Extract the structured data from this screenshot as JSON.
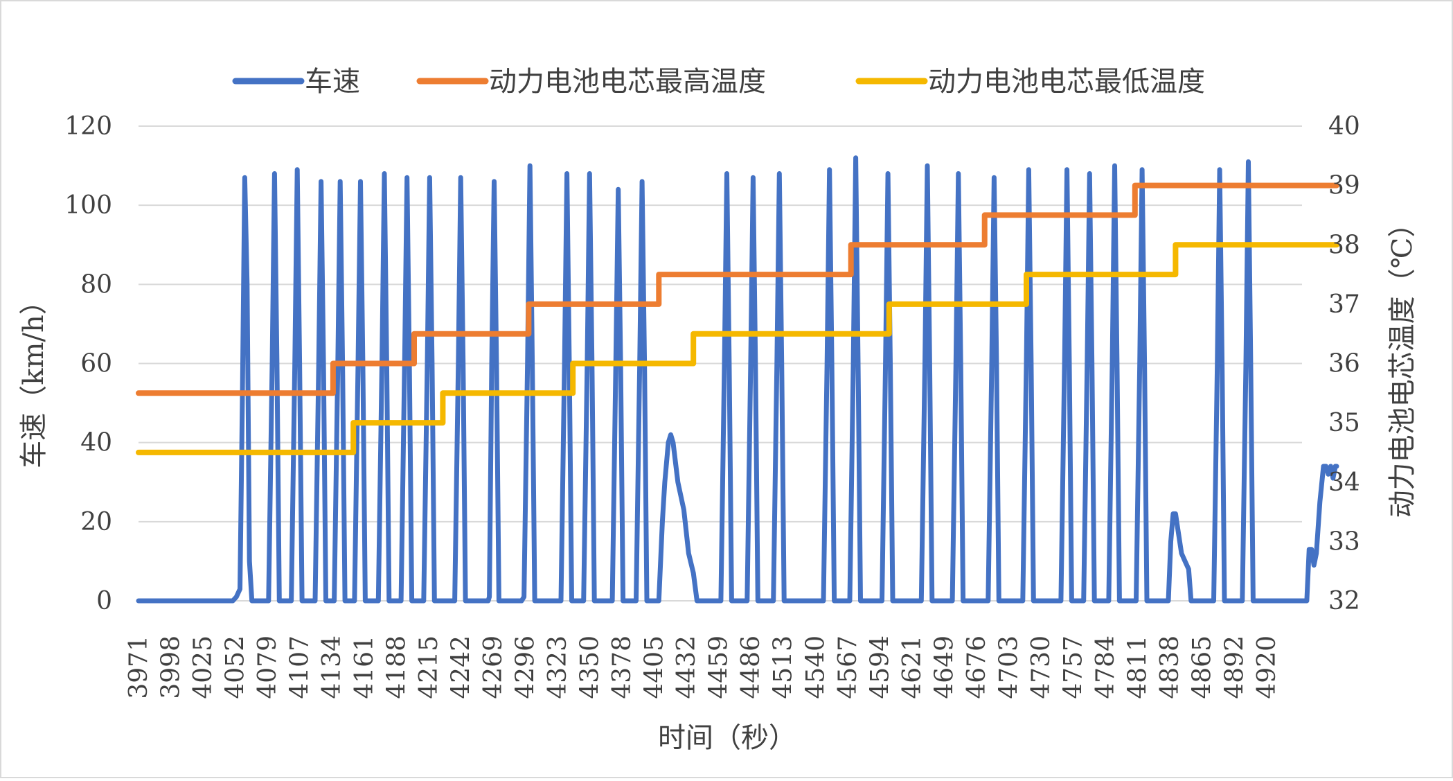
{
  "chart_data": {
    "type": "line",
    "title": "",
    "xlabel": "时间（秒）",
    "ylabel": "车速（km/h）",
    "y2label": "动力电池电芯温度（℃）",
    "x_range": [
      3971,
      4946
    ],
    "x_tick_labels": [
      "3971",
      "3998",
      "4025",
      "4052",
      "4079",
      "4107",
      "4134",
      "4161",
      "4188",
      "4215",
      "4242",
      "4269",
      "4296",
      "4323",
      "4350",
      "4378",
      "4405",
      "4432",
      "4459",
      "4486",
      "4513",
      "4540",
      "4567",
      "4594",
      "4621",
      "4649",
      "4676",
      "4703",
      "4730",
      "4757",
      "4784",
      "4811",
      "4838",
      "4865",
      "4892",
      "4920"
    ],
    "ylim": [
      0,
      120
    ],
    "y_ticks": [
      "0",
      "20",
      "40",
      "60",
      "80",
      "100",
      "120"
    ],
    "y2lim": [
      32,
      40
    ],
    "y2_ticks": [
      "32",
      "33",
      "34",
      "35",
      "36",
      "37",
      "38",
      "39",
      "40"
    ],
    "grid": true,
    "legend_position": "top",
    "series": [
      {
        "name": "车速",
        "axis": "left",
        "color": "#4472C4",
        "points": [
          [
            3971,
            0
          ],
          [
            4050,
            0
          ],
          [
            4053,
            1
          ],
          [
            4056,
            3
          ],
          [
            4058,
            50
          ],
          [
            4060,
            107
          ],
          [
            4062,
            80
          ],
          [
            4064,
            10
          ],
          [
            4066,
            0
          ],
          [
            4080,
            0
          ],
          [
            4083,
            60
          ],
          [
            4085,
            108
          ],
          [
            4087,
            60
          ],
          [
            4089,
            0
          ],
          [
            4099,
            0
          ],
          [
            4102,
            60
          ],
          [
            4104,
            109
          ],
          [
            4106,
            60
          ],
          [
            4108,
            0
          ],
          [
            4119,
            0
          ],
          [
            4122,
            60
          ],
          [
            4124,
            106
          ],
          [
            4126,
            60
          ],
          [
            4128,
            0
          ],
          [
            4135,
            0
          ],
          [
            4138,
            60
          ],
          [
            4140,
            106
          ],
          [
            4142,
            60
          ],
          [
            4144,
            0
          ],
          [
            4152,
            0
          ],
          [
            4155,
            60
          ],
          [
            4157,
            106
          ],
          [
            4159,
            60
          ],
          [
            4161,
            0
          ],
          [
            4172,
            0
          ],
          [
            4175,
            60
          ],
          [
            4177,
            108
          ],
          [
            4179,
            60
          ],
          [
            4181,
            0
          ],
          [
            4191,
            0
          ],
          [
            4194,
            60
          ],
          [
            4196,
            107
          ],
          [
            4198,
            60
          ],
          [
            4200,
            0
          ],
          [
            4210,
            0
          ],
          [
            4213,
            60
          ],
          [
            4215,
            107
          ],
          [
            4217,
            60
          ],
          [
            4219,
            0
          ],
          [
            4236,
            0
          ],
          [
            4239,
            60
          ],
          [
            4241,
            107
          ],
          [
            4243,
            60
          ],
          [
            4245,
            0
          ],
          [
            4264,
            0
          ],
          [
            4265,
            1
          ],
          [
            4267,
            60
          ],
          [
            4269,
            106
          ],
          [
            4271,
            60
          ],
          [
            4273,
            0
          ],
          [
            4292,
            0
          ],
          [
            4294,
            1
          ],
          [
            4297,
            60
          ],
          [
            4299,
            110
          ],
          [
            4301,
            60
          ],
          [
            4303,
            0
          ],
          [
            4325,
            0
          ],
          [
            4328,
            60
          ],
          [
            4330,
            108
          ],
          [
            4332,
            60
          ],
          [
            4334,
            0
          ],
          [
            4344,
            0
          ],
          [
            4347,
            60
          ],
          [
            4349,
            108
          ],
          [
            4351,
            60
          ],
          [
            4353,
            0
          ],
          [
            4368,
            0
          ],
          [
            4371,
            60
          ],
          [
            4373,
            104
          ],
          [
            4375,
            60
          ],
          [
            4377,
            0
          ],
          [
            4388,
            0
          ],
          [
            4391,
            60
          ],
          [
            4393,
            106
          ],
          [
            4395,
            60
          ],
          [
            4397,
            0
          ],
          [
            4407,
            0
          ],
          [
            4410,
            20
          ],
          [
            4412,
            30
          ],
          [
            4415,
            40
          ],
          [
            4417,
            42
          ],
          [
            4419,
            40
          ],
          [
            4423,
            30
          ],
          [
            4428,
            23
          ],
          [
            4432,
            12
          ],
          [
            4436,
            7
          ],
          [
            4439,
            0
          ],
          [
            4446,
            0
          ],
          [
            4459,
            0
          ],
          [
            4462,
            60
          ],
          [
            4464,
            108
          ],
          [
            4466,
            60
          ],
          [
            4468,
            0
          ],
          [
            4481,
            0
          ],
          [
            4484,
            60
          ],
          [
            4486,
            107
          ],
          [
            4488,
            60
          ],
          [
            4490,
            0
          ],
          [
            4503,
            0
          ],
          [
            4506,
            60
          ],
          [
            4508,
            108
          ],
          [
            4510,
            60
          ],
          [
            4512,
            0
          ],
          [
            4545,
            0
          ],
          [
            4548,
            60
          ],
          [
            4550,
            109
          ],
          [
            4552,
            60
          ],
          [
            4554,
            0
          ],
          [
            4567,
            0
          ],
          [
            4570,
            60
          ],
          [
            4572,
            112
          ],
          [
            4574,
            60
          ],
          [
            4576,
            0
          ],
          [
            4594,
            0
          ],
          [
            4597,
            60
          ],
          [
            4599,
            108
          ],
          [
            4601,
            60
          ],
          [
            4603,
            0
          ],
          [
            4627,
            0
          ],
          [
            4630,
            60
          ],
          [
            4632,
            110
          ],
          [
            4634,
            60
          ],
          [
            4636,
            0
          ],
          [
            4653,
            0
          ],
          [
            4656,
            60
          ],
          [
            4658,
            108
          ],
          [
            4660,
            60
          ],
          [
            4662,
            0
          ],
          [
            4683,
            0
          ],
          [
            4686,
            60
          ],
          [
            4688,
            107
          ],
          [
            4690,
            60
          ],
          [
            4692,
            0
          ],
          [
            4712,
            0
          ],
          [
            4715,
            60
          ],
          [
            4717,
            109
          ],
          [
            4719,
            60
          ],
          [
            4721,
            0
          ],
          [
            4726,
            0
          ],
          [
            4744,
            0
          ],
          [
            4747,
            60
          ],
          [
            4749,
            109
          ],
          [
            4751,
            60
          ],
          [
            4753,
            0
          ],
          [
            4763,
            0
          ],
          [
            4766,
            60
          ],
          [
            4768,
            108
          ],
          [
            4770,
            60
          ],
          [
            4772,
            0
          ],
          [
            4784,
            0
          ],
          [
            4787,
            60
          ],
          [
            4789,
            110
          ],
          [
            4791,
            60
          ],
          [
            4793,
            0
          ],
          [
            4807,
            0
          ],
          [
            4810,
            60
          ],
          [
            4812,
            109
          ],
          [
            4814,
            60
          ],
          [
            4816,
            0
          ],
          [
            4834,
            0
          ],
          [
            4836,
            15
          ],
          [
            4838,
            22
          ],
          [
            4840,
            22
          ],
          [
            4842,
            18
          ],
          [
            4845,
            12
          ],
          [
            4848,
            10
          ],
          [
            4851,
            8
          ],
          [
            4853,
            0
          ],
          [
            4872,
            0
          ],
          [
            4875,
            60
          ],
          [
            4877,
            109
          ],
          [
            4879,
            60
          ],
          [
            4881,
            0
          ],
          [
            4896,
            0
          ],
          [
            4899,
            60
          ],
          [
            4901,
            111
          ],
          [
            4903,
            60
          ],
          [
            4905,
            0
          ],
          [
            4950,
            0
          ],
          [
            4952,
            13
          ],
          [
            4954,
            13
          ],
          [
            4956,
            9
          ],
          [
            4958,
            12
          ],
          [
            4961,
            25
          ],
          [
            4964,
            34
          ],
          [
            4966,
            34
          ],
          [
            4968,
            32
          ],
          [
            4970,
            34
          ],
          [
            4972,
            31
          ],
          [
            4974,
            34
          ],
          [
            4975,
            34
          ]
        ]
      },
      {
        "name": "动力电池电芯最高温度",
        "axis": "right",
        "color": "#ED7D31",
        "points": [
          [
            3971,
            35.5
          ],
          [
            4134,
            35.5
          ],
          [
            4134,
            36
          ],
          [
            4202,
            36
          ],
          [
            4202,
            36.5
          ],
          [
            4298,
            36.5
          ],
          [
            4298,
            37
          ],
          [
            4407,
            37
          ],
          [
            4407,
            37.5
          ],
          [
            4568,
            37.5
          ],
          [
            4568,
            38
          ],
          [
            4680,
            38
          ],
          [
            4680,
            38.5
          ],
          [
            4806,
            38.5
          ],
          [
            4806,
            39
          ],
          [
            4975,
            39
          ]
        ]
      },
      {
        "name": "动力电池电芯最低温度",
        "axis": "right",
        "color": "#F5B800",
        "points": [
          [
            3971,
            34.5
          ],
          [
            4151,
            34.5
          ],
          [
            4151,
            35
          ],
          [
            4226,
            35
          ],
          [
            4226,
            35.5
          ],
          [
            4335,
            35.5
          ],
          [
            4335,
            36
          ],
          [
            4436,
            36
          ],
          [
            4436,
            36.5
          ],
          [
            4600,
            36.5
          ],
          [
            4600,
            37
          ],
          [
            4715,
            37
          ],
          [
            4715,
            37.5
          ],
          [
            4840,
            37.5
          ],
          [
            4840,
            38
          ],
          [
            4975,
            38
          ]
        ]
      }
    ]
  }
}
